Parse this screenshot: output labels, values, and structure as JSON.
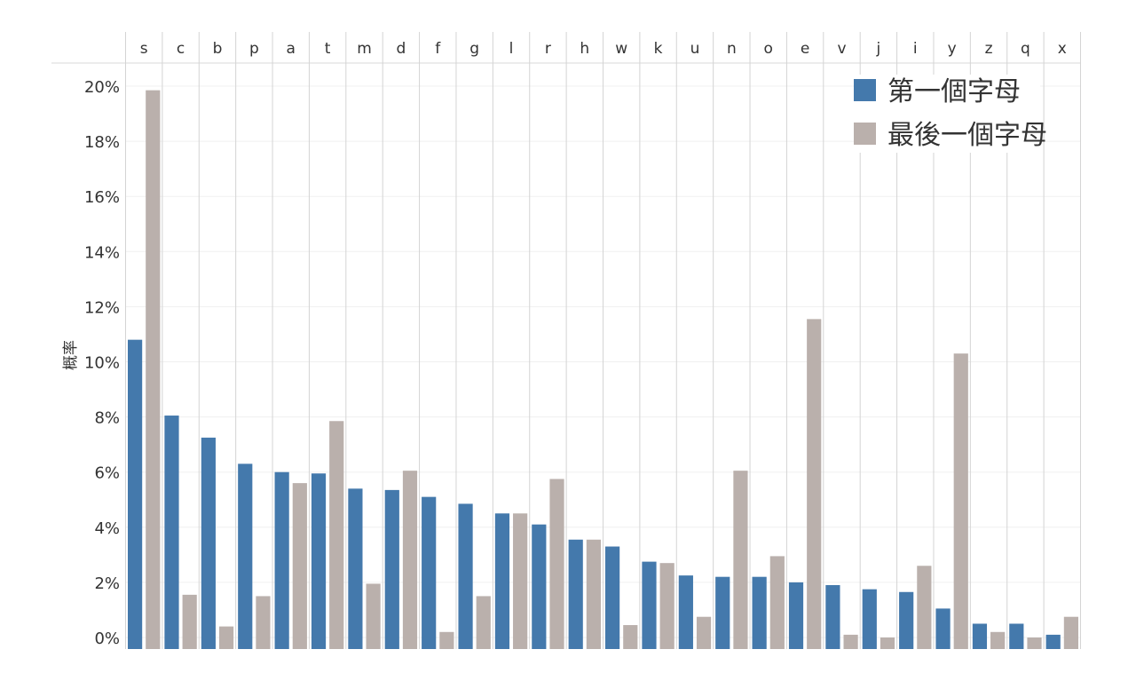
{
  "chart_data": {
    "type": "bar",
    "title": "",
    "xlabel": "",
    "ylabel": "概率",
    "ylim": [
      0,
      20
    ],
    "y_ticks": [
      "0%",
      "2%",
      "4%",
      "6%",
      "8%",
      "10%",
      "12%",
      "14%",
      "16%",
      "18%",
      "20%"
    ],
    "y_tick_values": [
      0,
      2,
      4,
      6,
      8,
      10,
      12,
      14,
      16,
      18,
      20
    ],
    "categories": [
      "s",
      "c",
      "b",
      "p",
      "a",
      "t",
      "m",
      "d",
      "f",
      "g",
      "l",
      "r",
      "h",
      "w",
      "k",
      "u",
      "n",
      "o",
      "e",
      "v",
      "j",
      "i",
      "y",
      "z",
      "q",
      "x"
    ],
    "series": [
      {
        "name": "第一個字母",
        "color": "#4479ac",
        "values": [
          10.8,
          8.05,
          7.25,
          6.3,
          6.0,
          5.95,
          5.4,
          5.35,
          5.1,
          4.85,
          4.5,
          4.1,
          3.55,
          3.3,
          2.75,
          2.25,
          2.2,
          2.2,
          2.0,
          1.9,
          1.75,
          1.65,
          1.05,
          0.5,
          0.5,
          0.1
        ]
      },
      {
        "name": "最後一個字母",
        "color": "#bab0ac",
        "values": [
          19.85,
          1.55,
          0.4,
          1.5,
          5.6,
          7.85,
          1.95,
          6.05,
          0.2,
          1.5,
          4.5,
          5.75,
          3.55,
          0.45,
          2.7,
          0.75,
          6.05,
          2.95,
          11.55,
          0.1,
          0.0,
          2.6,
          10.3,
          0.2,
          0.0,
          0.75
        ]
      }
    ],
    "grid": true,
    "legend": "top-right",
    "category_axis_position": "top"
  }
}
